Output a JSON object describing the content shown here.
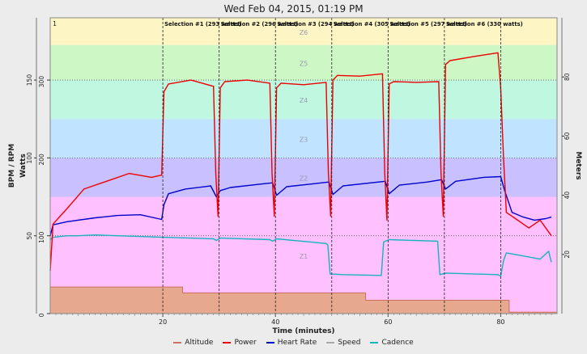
{
  "chart_data": {
    "type": "line",
    "title": "Wed Feb 04, 2015, 01:19 PM",
    "xlabel": "Time (minutes)",
    "ylabel_left_outer": "BPM / RPM",
    "ylabel_left_inner": "Watts",
    "ylabel_right": "Meters",
    "xlim": [
      0,
      90
    ],
    "x_ticks": [
      20,
      40,
      60,
      80
    ],
    "y_bpm_ticks": [
      50,
      100,
      150
    ],
    "y_watts_ticks": [
      0,
      100,
      200,
      300
    ],
    "y_watts_lim": [
      0,
      380
    ],
    "y_meters_ticks": [
      20,
      40,
      60,
      80
    ],
    "y_meters_lim": [
      0,
      100
    ],
    "zones": [
      {
        "label": "Z1",
        "from": 0,
        "to": 150,
        "color": "#ffc0ff"
      },
      {
        "label": "Z2",
        "from": 150,
        "to": 200,
        "color": "#c8c0ff"
      },
      {
        "label": "Z3",
        "from": 200,
        "to": 250,
        "color": "#c0e4ff"
      },
      {
        "label": "Z4",
        "from": 250,
        "to": 300,
        "color": "#bff7e0"
      },
      {
        "label": "Z5",
        "from": 300,
        "to": 345,
        "color": "#cdf7c4"
      },
      {
        "label": "Z6",
        "from": 345,
        "to": 380,
        "color": "#fdf6c4"
      }
    ],
    "corner_label": "1",
    "selection_lines": [
      20,
      30,
      40,
      50,
      60,
      70,
      80
    ],
    "selections": [
      {
        "start": 20,
        "label": "Selection #1 (293 watts)"
      },
      {
        "start": 30,
        "label": "Selection #2 (296 watts)"
      },
      {
        "start": 40,
        "label": "Selection #3 (294 watts)"
      },
      {
        "start": 50,
        "label": "Selection #4 (305 watts)"
      },
      {
        "start": 60,
        "label": "Selection #5 (297 watts)"
      },
      {
        "start": 70,
        "label": "Selection #6 (330 watts)"
      }
    ],
    "series": [
      {
        "name": "Altitude",
        "color": "#cc7060",
        "axis": "meters",
        "x": [
          0,
          23.5,
          23.5,
          56,
          56,
          81.5,
          81.5,
          90
        ],
        "y": [
          9,
          9,
          7,
          7,
          4.5,
          4.5,
          0.5,
          0.5
        ]
      },
      {
        "name": "Power",
        "color": "#ee0000",
        "axis": "watts",
        "x": [
          0,
          0.5,
          3,
          6,
          10,
          14,
          18,
          19.8,
          20.2,
          21,
          25,
          29,
          29.4,
          29.8,
          30.2,
          31,
          35,
          39,
          39.4,
          39.8,
          40.2,
          41,
          45,
          49,
          49.4,
          49.8,
          50.2,
          51,
          55,
          59,
          59.4,
          59.8,
          60.2,
          61,
          65,
          69,
          69.4,
          69.8,
          70.2,
          71,
          75,
          79.5,
          80,
          80.5,
          81,
          82,
          85,
          87,
          89
        ],
        "y": [
          55,
          115,
          135,
          160,
          170,
          180,
          175,
          178,
          285,
          295,
          300,
          292,
          180,
          125,
          290,
          298,
          300,
          296,
          180,
          125,
          290,
          296,
          294,
          297,
          180,
          125,
          300,
          306,
          305,
          308,
          180,
          120,
          295,
          298,
          297,
          298,
          180,
          125,
          320,
          325,
          330,
          335,
          290,
          200,
          130,
          125,
          110,
          120,
          100
        ]
      },
      {
        "name": "Heart Rate",
        "color": "#0000cc",
        "axis": "bpm",
        "x": [
          0,
          0.5,
          3,
          8,
          12,
          16,
          19.8,
          20.2,
          21,
          24,
          28.5,
          29.5,
          30.2,
          32,
          37,
          39.5,
          40.2,
          42,
          47,
          49.5,
          50.2,
          52,
          57,
          59.5,
          60.2,
          62,
          67,
          69.5,
          70.2,
          72,
          77,
          80,
          80.7,
          82,
          84,
          86,
          88,
          89
        ],
        "y": [
          100,
          114,
          118,
          123,
          126,
          127,
          121,
          140,
          154,
          160,
          164,
          150,
          158,
          162,
          166,
          168,
          152,
          163,
          167,
          169,
          153,
          164,
          168,
          170,
          154,
          165,
          169,
          172,
          160,
          170,
          175,
          176,
          158,
          130,
          124,
          120,
          122,
          124
        ]
      },
      {
        "name": "Cadence",
        "color": "#17b3c1",
        "axis": "bpm",
        "x": [
          0,
          0.5,
          3,
          5,
          8,
          12,
          16,
          19.8,
          20.2,
          29,
          29.5,
          30.2,
          39,
          39.5,
          40.2,
          49,
          49.3,
          49.7,
          52,
          58.8,
          59.2,
          60.2,
          68.8,
          69.2,
          70.2,
          79.5,
          80,
          80.5,
          81,
          84,
          87,
          88.5,
          89
        ],
        "y": [
          95,
          98,
          100,
          100,
          101,
          100,
          99,
          98,
          98,
          96,
          94,
          97,
          95,
          93,
          96,
          90,
          88,
          51,
          50,
          49,
          92,
          95,
          93,
          50,
          52,
          50,
          48,
          68,
          78,
          74,
          70,
          80,
          66
        ]
      },
      {
        "name": "Speed",
        "color": "#aaaaaa",
        "axis": "bpm",
        "x": [],
        "y": []
      }
    ],
    "legend": [
      "Altitude",
      "Power",
      "Heart Rate",
      "Speed",
      "Cadence"
    ],
    "legend_placement": "bottom"
  }
}
